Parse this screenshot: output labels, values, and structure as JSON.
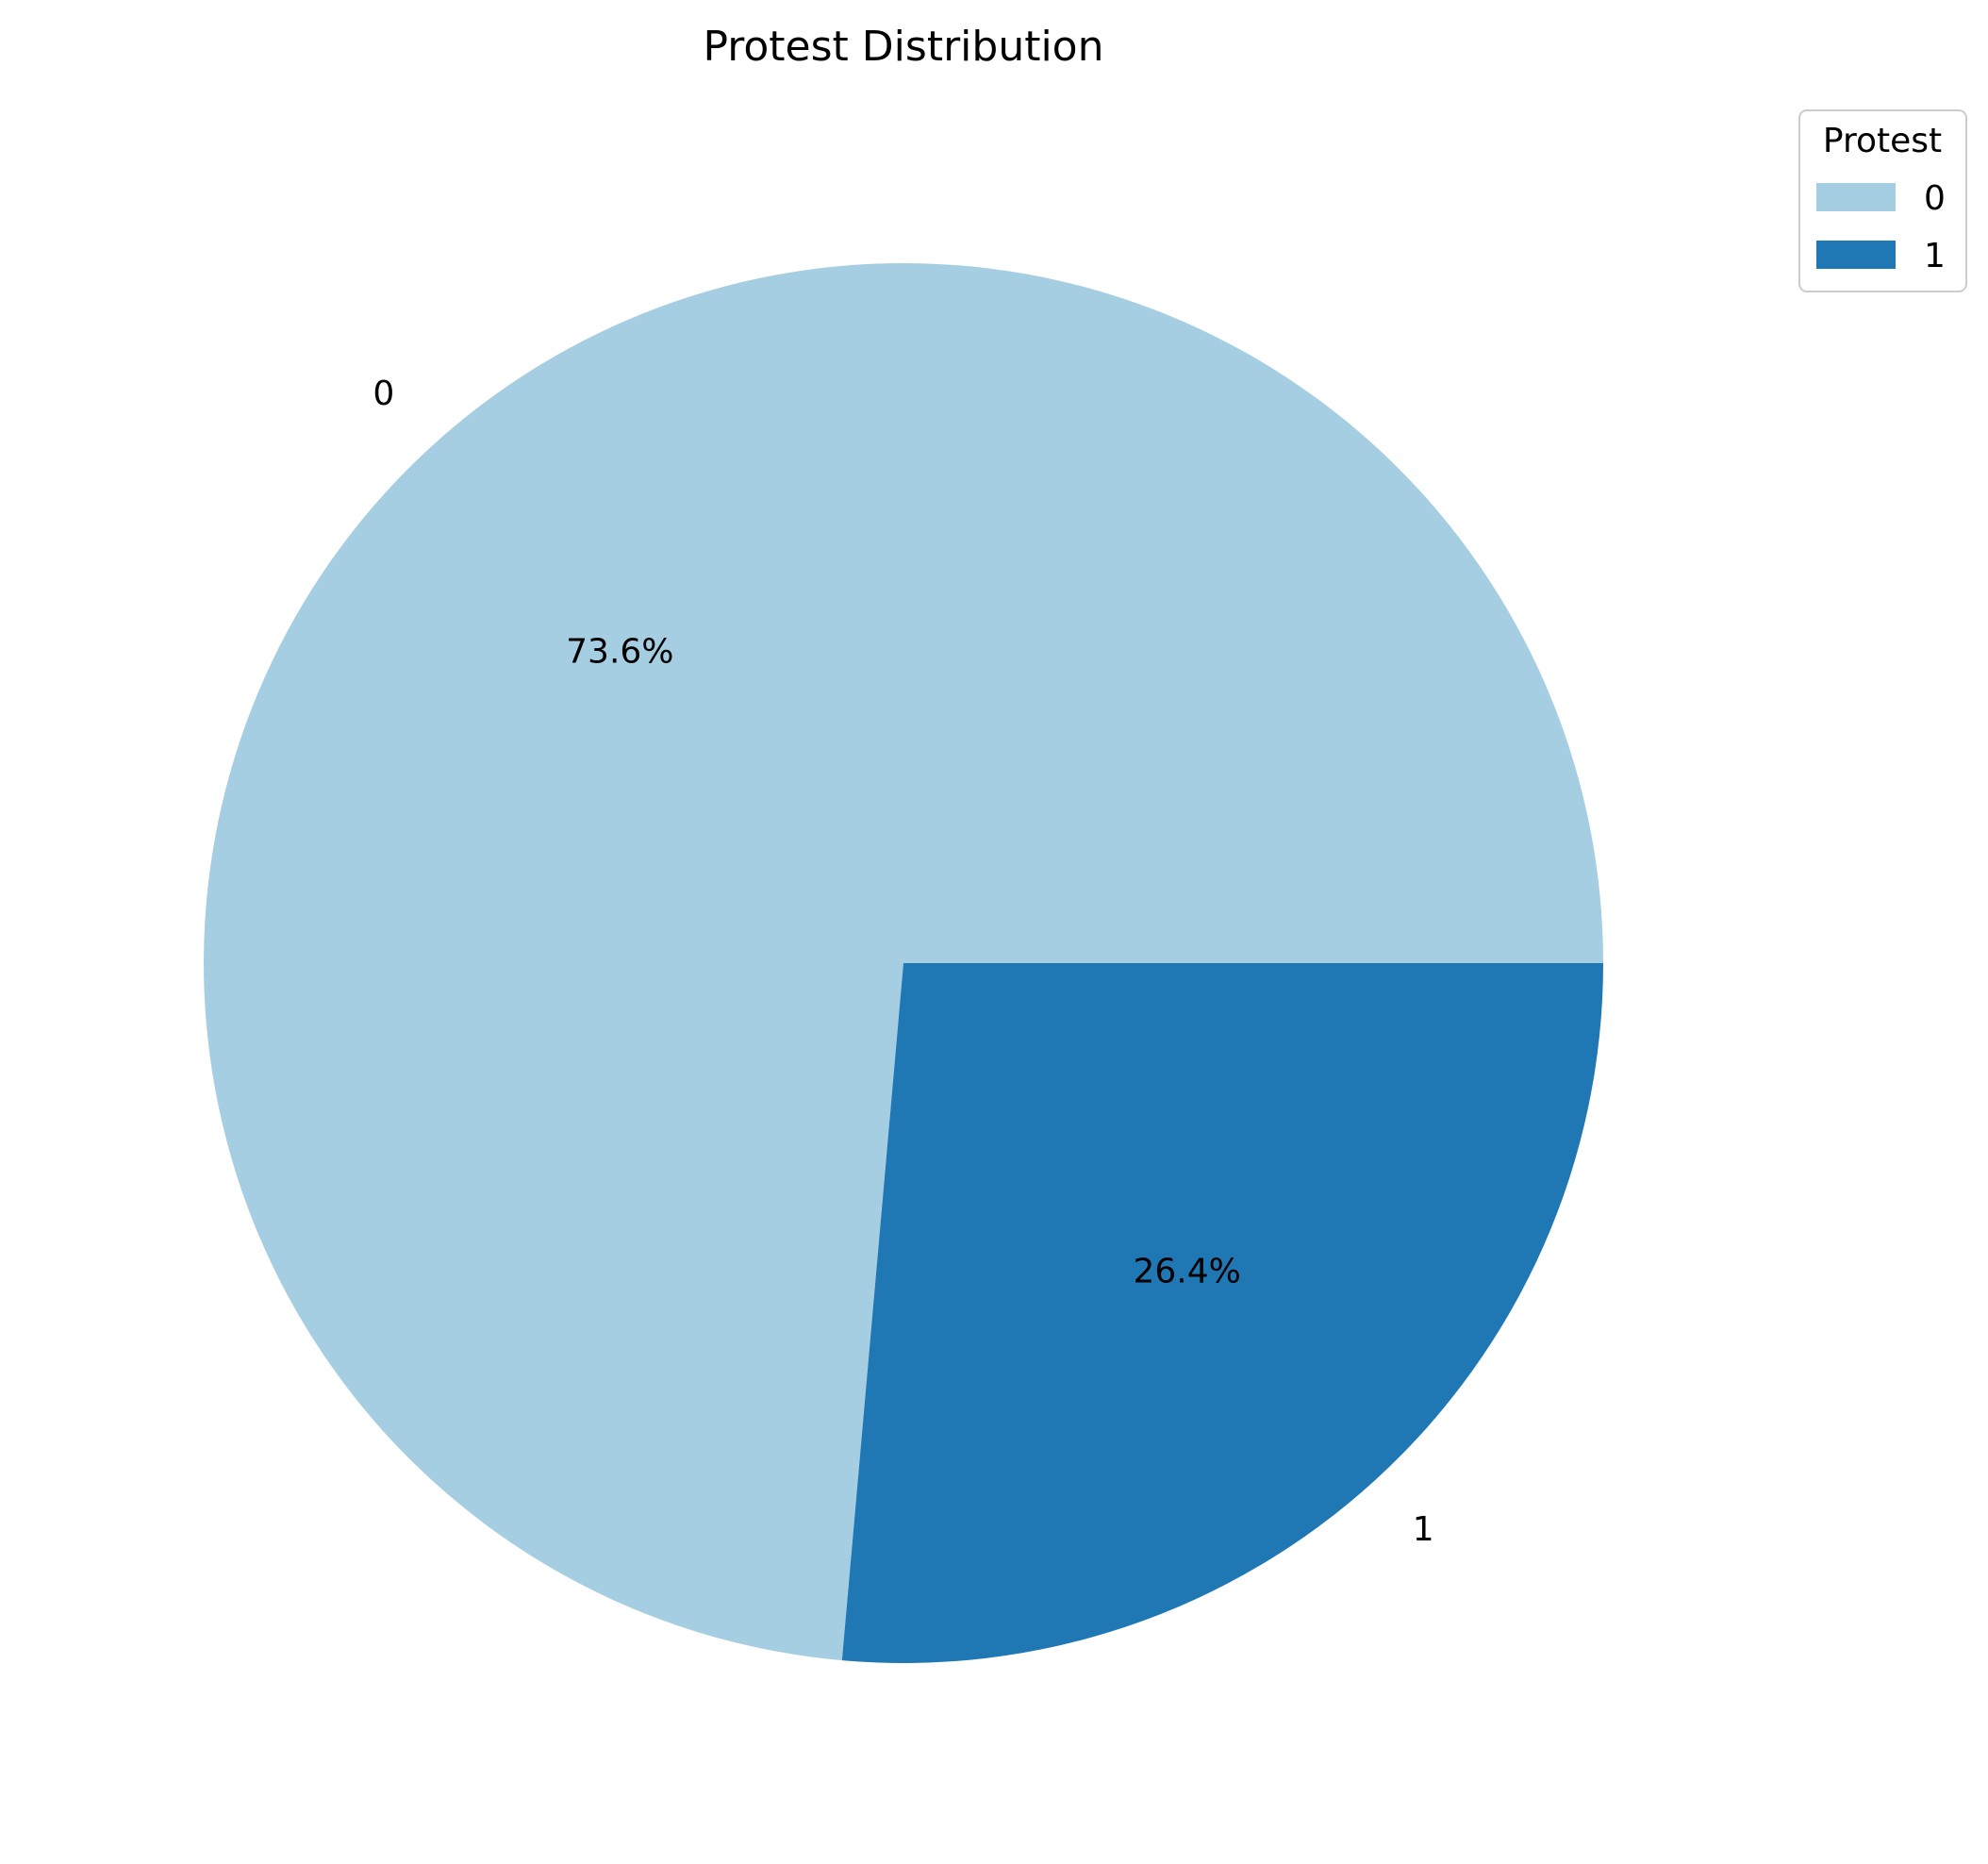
{
  "chart_data": {
    "type": "pie",
    "title": "Protest Distribution",
    "categories": [
      "0",
      "1"
    ],
    "values": [
      73.6,
      26.4
    ],
    "percent_labels": [
      "73.6%",
      "26.4%"
    ],
    "colors": [
      "#a6cee3",
      "#1f78b4"
    ],
    "start_angle_deg": 0,
    "direction": "counterclockwise",
    "legend": {
      "title": "Protest",
      "placement": "top-right",
      "entries": [
        "0",
        "1"
      ]
    }
  }
}
